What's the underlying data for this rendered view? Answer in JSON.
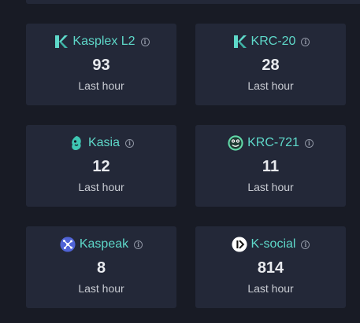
{
  "cards": [
    {
      "name": "Kasplex L2",
      "value": "93",
      "period": "Last hour",
      "icon": "kasplex-logo-icon"
    },
    {
      "name": "KRC-20",
      "value": "28",
      "period": "Last hour",
      "icon": "krc20-logo-icon"
    },
    {
      "name": "Kasia",
      "value": "12",
      "period": "Last hour",
      "icon": "kasia-logo-icon"
    },
    {
      "name": "KRC-721",
      "value": "11",
      "period": "Last hour",
      "icon": "krc721-logo-icon"
    },
    {
      "name": "Kaspeak",
      "value": "8",
      "period": "Last hour",
      "icon": "kaspeak-logo-icon"
    },
    {
      "name": "K-social",
      "value": "814",
      "period": "Last hour",
      "icon": "ksocial-logo-icon"
    }
  ],
  "info_glyph": "i",
  "colors": {
    "background": "#181b25",
    "card": "#232838",
    "accent": "#5ed8c9",
    "value": "#e9ebef",
    "muted": "#c9ccd3"
  }
}
